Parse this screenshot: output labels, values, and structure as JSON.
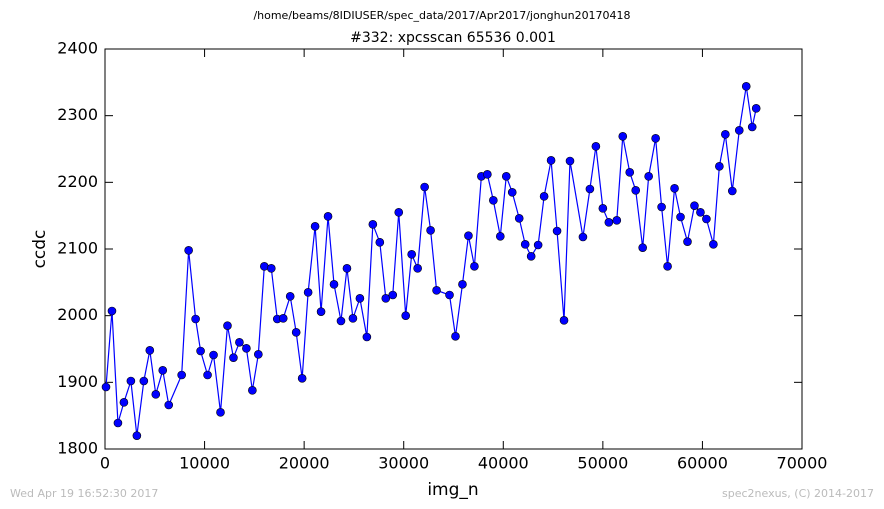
{
  "chart_data": {
    "type": "line",
    "suptitle": "/home/beams/8IDIUSER/spec_data/2017/Apr2017/jonghun20170418",
    "title": "#332: xpcsscan 65536 0.001",
    "xlabel": "img_n",
    "ylabel": "ccdc",
    "footer_left": "Wed Apr 19 16:52:30 2017",
    "footer_right": "spec2nexus, (C) 2014-2017",
    "xlim": [
      0,
      70000
    ],
    "xticks": [
      0,
      10000,
      20000,
      30000,
      40000,
      50000,
      60000,
      70000
    ],
    "ylim": [
      1800,
      2400
    ],
    "yticks": [
      1800,
      1900,
      2000,
      2100,
      2200,
      2300,
      2400
    ],
    "x": [
      100,
      700,
      1300,
      1900,
      2600,
      3200,
      3900,
      4500,
      5100,
      5800,
      6400,
      7700,
      8400,
      9100,
      9600,
      10300,
      10900,
      11600,
      12300,
      12900,
      13500,
      14200,
      14800,
      15400,
      16000,
      16700,
      17300,
      17900,
      18600,
      19200,
      19800,
      20400,
      21100,
      21700,
      22400,
      23000,
      23700,
      24300,
      24900,
      25600,
      26300,
      26900,
      27600,
      28200,
      28900,
      29500,
      30200,
      30800,
      31400,
      32100,
      32700,
      33300,
      34600,
      35200,
      35900,
      36500,
      37100,
      37800,
      38400,
      39000,
      39700,
      40300,
      40900,
      41600,
      42200,
      42800,
      43500,
      44100,
      44800,
      45400,
      46100,
      46700,
      48000,
      48700,
      49300,
      50000,
      50600,
      51400,
      52000,
      52700,
      53300,
      54000,
      54600,
      55300,
      55900,
      56500,
      57200,
      57800,
      58500,
      59200,
      59800,
      60400,
      61100,
      61700,
      62300,
      63000,
      63700,
      64400,
      65000,
      65400
    ],
    "series": [
      {
        "name": "ccdc",
        "color": "#0000ff",
        "values": [
          1893,
          2007,
          1839,
          1870,
          1902,
          1820,
          1902,
          1948,
          1882,
          1918,
          1866,
          1911,
          2098,
          1995,
          1947,
          1911,
          1941,
          1855,
          1985,
          1937,
          1960,
          1951,
          1888,
          1942,
          2074,
          2071,
          1995,
          1996,
          2029,
          1975,
          1906,
          2035,
          2134,
          2006,
          2149,
          2047,
          1992,
          2071,
          1996,
          2026,
          1968,
          2137,
          2110,
          2026,
          2031,
          2155,
          2000,
          2092,
          2071,
          2193,
          2128,
          2038,
          2031,
          1969,
          2047,
          2120,
          2074,
          2209,
          2212,
          2173,
          2119,
          2209,
          2185,
          2146,
          2107,
          2089,
          2106,
          2179,
          2233,
          2127,
          1993,
          2232,
          2118,
          2190,
          2254,
          2161,
          2140,
          2143,
          2269,
          2215,
          2188,
          2102,
          2209,
          2266,
          2163,
          2074,
          2191,
          2148,
          2111,
          2165,
          2155,
          2145,
          2107,
          2224,
          2272,
          2187,
          2278,
          2344,
          2283,
          2311
        ]
      }
    ]
  }
}
